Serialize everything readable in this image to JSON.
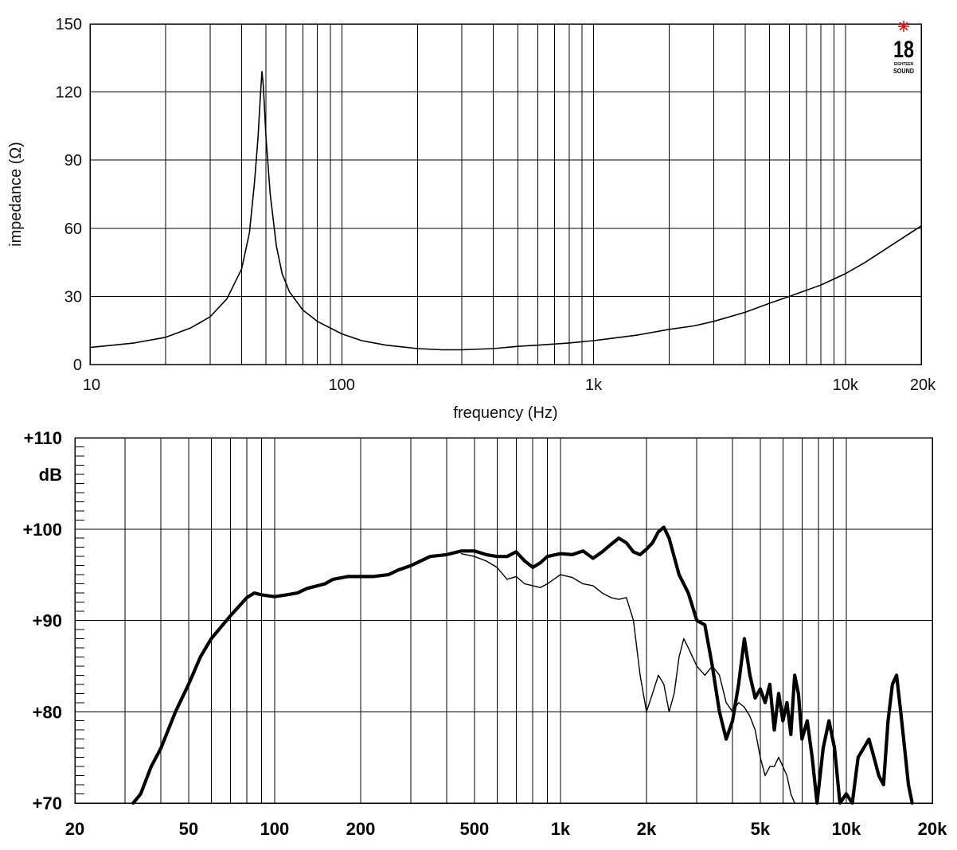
{
  "logo": {
    "number": "18",
    "line1": "EIGHTEEN",
    "line2": "SOUND",
    "accent_color": "#e8141c"
  },
  "chart_data": [
    {
      "type": "line",
      "id": "impedance",
      "title": "",
      "xlabel": "frequency (Hz)",
      "ylabel": "impedance (Ω)",
      "x_scale": "log",
      "xlim": [
        10,
        20000
      ],
      "ylim": [
        0,
        150
      ],
      "grid": true,
      "x_ticks": [
        {
          "value": 10,
          "label": "10"
        },
        {
          "value": 100,
          "label": "100"
        },
        {
          "value": 1000,
          "label": "1k"
        },
        {
          "value": 10000,
          "label": "10k"
        },
        {
          "value": 20000,
          "label": "20k"
        }
      ],
      "y_ticks": [
        {
          "value": 0,
          "label": "0"
        },
        {
          "value": 30,
          "label": "30"
        },
        {
          "value": 60,
          "label": "60"
        },
        {
          "value": 90,
          "label": "90"
        },
        {
          "value": 120,
          "label": "120"
        },
        {
          "value": 150,
          "label": "150"
        }
      ],
      "series": [
        {
          "color": "#000000",
          "points": [
            [
              10,
              7.5
            ],
            [
              15,
              9.5
            ],
            [
              20,
              12
            ],
            [
              25,
              16
            ],
            [
              30,
              21
            ],
            [
              35,
              29
            ],
            [
              40,
              42
            ],
            [
              43,
              58
            ],
            [
              45,
              80
            ],
            [
              46.5,
              100
            ],
            [
              47.5,
              118
            ],
            [
              48.2,
              129
            ],
            [
              48.8,
              123
            ],
            [
              50,
              100
            ],
            [
              52,
              75
            ],
            [
              55,
              52
            ],
            [
              58,
              40
            ],
            [
              62,
              32
            ],
            [
              70,
              24
            ],
            [
              80,
              19
            ],
            [
              100,
              13.5
            ],
            [
              120,
              10.5
            ],
            [
              150,
              8.5
            ],
            [
              200,
              7
            ],
            [
              250,
              6.5
            ],
            [
              300,
              6.5
            ],
            [
              400,
              7
            ],
            [
              500,
              8
            ],
            [
              600,
              8.5
            ],
            [
              800,
              9.5
            ],
            [
              1000,
              10.5
            ],
            [
              1500,
              13
            ],
            [
              2000,
              15.5
            ],
            [
              2500,
              17
            ],
            [
              3000,
              19
            ],
            [
              4000,
              23
            ],
            [
              5000,
              27
            ],
            [
              6000,
              30
            ],
            [
              8000,
              35
            ],
            [
              10000,
              40
            ],
            [
              12000,
              45
            ],
            [
              15000,
              52
            ],
            [
              20000,
              61
            ]
          ]
        }
      ]
    },
    {
      "type": "line",
      "id": "frequency-response",
      "title": "",
      "unit_label": "dB",
      "x_scale": "log",
      "xlim": [
        20,
        20000
      ],
      "ylim": [
        70,
        110
      ],
      "grid": true,
      "x_ticks": [
        {
          "value": 20,
          "label": "20"
        },
        {
          "value": 50,
          "label": "50"
        },
        {
          "value": 100,
          "label": "100"
        },
        {
          "value": 200,
          "label": "200"
        },
        {
          "value": 500,
          "label": "500"
        },
        {
          "value": 1000,
          "label": "1k"
        },
        {
          "value": 2000,
          "label": "2k"
        },
        {
          "value": 5000,
          "label": "5k"
        },
        {
          "value": 10000,
          "label": "10k"
        },
        {
          "value": 20000,
          "label": "20k"
        }
      ],
      "y_ticks": [
        {
          "value": 70,
          "label": "+70"
        },
        {
          "value": 80,
          "label": "+80"
        },
        {
          "value": 90,
          "label": "+90"
        },
        {
          "value": 100,
          "label": "+100"
        },
        {
          "value": 110,
          "label": "+110"
        }
      ],
      "series": [
        {
          "style": "thick",
          "color": "#000000",
          "points": [
            [
              32,
              70
            ],
            [
              34,
              71
            ],
            [
              37,
              74
            ],
            [
              40,
              76
            ],
            [
              45,
              80
            ],
            [
              50,
              83
            ],
            [
              55,
              86
            ],
            [
              60,
              88
            ],
            [
              70,
              90.5
            ],
            [
              80,
              92.5
            ],
            [
              85,
              93
            ],
            [
              90,
              92.8
            ],
            [
              100,
              92.6
            ],
            [
              110,
              92.8
            ],
            [
              120,
              93
            ],
            [
              130,
              93.5
            ],
            [
              150,
              94
            ],
            [
              160,
              94.5
            ],
            [
              180,
              94.8
            ],
            [
              200,
              94.8
            ],
            [
              220,
              94.8
            ],
            [
              250,
              95
            ],
            [
              270,
              95.5
            ],
            [
              300,
              96
            ],
            [
              350,
              97
            ],
            [
              400,
              97.2
            ],
            [
              450,
              97.6
            ],
            [
              500,
              97.6
            ],
            [
              550,
              97.2
            ],
            [
              600,
              97
            ],
            [
              650,
              97
            ],
            [
              700,
              97.5
            ],
            [
              750,
              96.5
            ],
            [
              800,
              95.8
            ],
            [
              850,
              96.3
            ],
            [
              900,
              97
            ],
            [
              1000,
              97.3
            ],
            [
              1100,
              97.2
            ],
            [
              1200,
              97.6
            ],
            [
              1300,
              96.8
            ],
            [
              1400,
              97.5
            ],
            [
              1500,
              98.3
            ],
            [
              1600,
              99
            ],
            [
              1700,
              98.5
            ],
            [
              1800,
              97.5
            ],
            [
              1900,
              97.2
            ],
            [
              2000,
              97.8
            ],
            [
              2100,
              98.5
            ],
            [
              2200,
              99.7
            ],
            [
              2300,
              100.2
            ],
            [
              2400,
              99
            ],
            [
              2600,
              95
            ],
            [
              2800,
              93
            ],
            [
              3000,
              90
            ],
            [
              3200,
              89.5
            ],
            [
              3400,
              85
            ],
            [
              3600,
              80
            ],
            [
              3800,
              77
            ],
            [
              4000,
              79
            ],
            [
              4200,
              83
            ],
            [
              4400,
              88
            ],
            [
              4600,
              84
            ],
            [
              4800,
              81.5
            ],
            [
              5000,
              82.5
            ],
            [
              5200,
              81
            ],
            [
              5400,
              83
            ],
            [
              5600,
              78
            ],
            [
              5800,
              82
            ],
            [
              6000,
              79
            ],
            [
              6200,
              81
            ],
            [
              6400,
              77.5
            ],
            [
              6600,
              84
            ],
            [
              6800,
              82
            ],
            [
              7000,
              77
            ],
            [
              7300,
              79
            ],
            [
              7600,
              75
            ],
            [
              7900,
              70
            ],
            [
              8300,
              76
            ],
            [
              8700,
              79
            ],
            [
              9100,
              76
            ],
            [
              9500,
              70
            ],
            [
              10000,
              71
            ],
            [
              10500,
              70
            ],
            [
              11000,
              75
            ],
            [
              11500,
              76
            ],
            [
              12000,
              77
            ],
            [
              12500,
              75
            ],
            [
              13000,
              73
            ],
            [
              13500,
              72
            ],
            [
              14000,
              79
            ],
            [
              14500,
              83
            ],
            [
              15000,
              84
            ],
            [
              15500,
              80
            ],
            [
              16000,
              76
            ],
            [
              16500,
              72
            ],
            [
              17000,
              70
            ]
          ]
        },
        {
          "style": "thin",
          "color": "#000000",
          "points": [
            [
              450,
              97.3
            ],
            [
              500,
              97
            ],
            [
              550,
              96.5
            ],
            [
              600,
              95.8
            ],
            [
              650,
              94.5
            ],
            [
              700,
              94.8
            ],
            [
              750,
              94
            ],
            [
              800,
              93.8
            ],
            [
              850,
              93.6
            ],
            [
              900,
              94
            ],
            [
              1000,
              95
            ],
            [
              1100,
              94.7
            ],
            [
              1200,
              94
            ],
            [
              1300,
              93.8
            ],
            [
              1400,
              93
            ],
            [
              1500,
              92.5
            ],
            [
              1600,
              92.3
            ],
            [
              1700,
              92.5
            ],
            [
              1800,
              90
            ],
            [
              1900,
              84
            ],
            [
              2000,
              80
            ],
            [
              2100,
              82
            ],
            [
              2200,
              84
            ],
            [
              2300,
              83
            ],
            [
              2400,
              80
            ],
            [
              2500,
              82
            ],
            [
              2600,
              86
            ],
            [
              2700,
              88
            ],
            [
              2800,
              87
            ],
            [
              3000,
              85
            ],
            [
              3200,
              84
            ],
            [
              3400,
              85
            ],
            [
              3600,
              84
            ],
            [
              3800,
              81
            ],
            [
              4000,
              80
            ],
            [
              4200,
              81
            ],
            [
              4400,
              80.5
            ],
            [
              4600,
              79.5
            ],
            [
              4800,
              78
            ],
            [
              5000,
              75
            ],
            [
              5200,
              73
            ],
            [
              5400,
              74
            ],
            [
              5600,
              74
            ],
            [
              5800,
              75
            ],
            [
              6000,
              74
            ],
            [
              6200,
              73
            ],
            [
              6400,
              71
            ],
            [
              6600,
              70
            ]
          ]
        }
      ]
    }
  ]
}
